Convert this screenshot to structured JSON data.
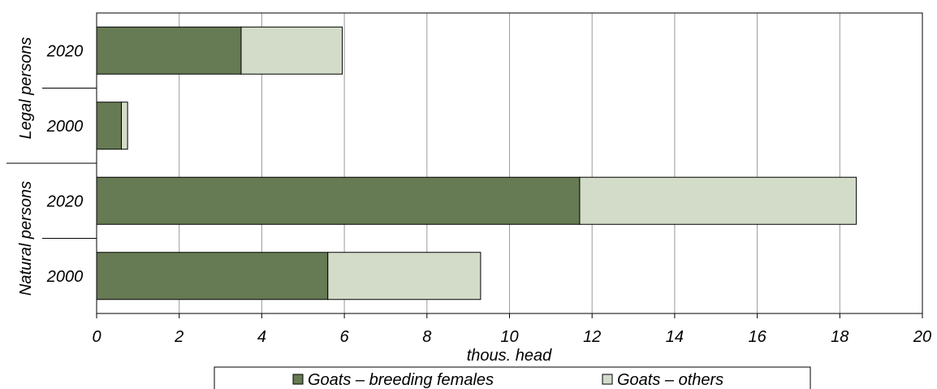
{
  "chart_data": {
    "type": "bar",
    "orientation": "horizontal",
    "stacked": true,
    "groups": [
      {
        "label": "Legal persons",
        "categories": [
          "2020",
          "2000"
        ]
      },
      {
        "label": "Natural persons",
        "categories": [
          "2020",
          "2000"
        ]
      }
    ],
    "categories": [
      "Legal persons 2020",
      "Legal persons 2000",
      "Natural persons 2020",
      "Natural persons 2000"
    ],
    "category_labels": [
      "2020",
      "2000",
      "2020",
      "2000"
    ],
    "series": [
      {
        "name": "Goats – breeding females",
        "color": "#667a53",
        "values": [
          3.5,
          0.6,
          11.7,
          5.6
        ]
      },
      {
        "name": "Goats – others",
        "color": "#d2dcc8",
        "values": [
          2.45,
          0.15,
          6.7,
          3.7
        ]
      }
    ],
    "xlabel": "thous. head",
    "xlim": [
      0,
      20
    ],
    "xticks": [
      "0",
      "2",
      "4",
      "6",
      "8",
      "10",
      "12",
      "14",
      "16",
      "18",
      "20"
    ],
    "grid": "vertical",
    "legend_position": "bottom"
  }
}
